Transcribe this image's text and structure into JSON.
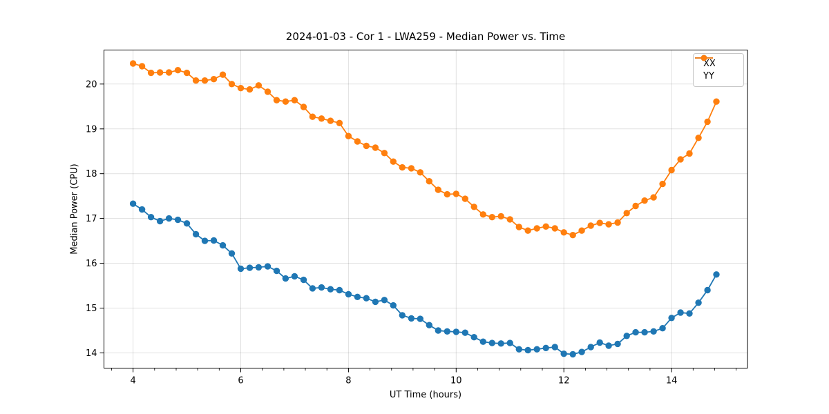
{
  "chart_data": {
    "type": "line",
    "title": "2024-01-03 - Cor 1 - LWA259 - Median Power vs. Time",
    "xlabel": "UT Time (hours)",
    "ylabel": "Median Power (CPU)",
    "xlim": [
      3.46,
      15.41
    ],
    "ylim": [
      13.66,
      20.76
    ],
    "x_ticks": [
      4,
      6,
      8,
      10,
      12,
      14
    ],
    "x_minor_step": 0.4,
    "y_ticks": [
      14,
      15,
      16,
      17,
      18,
      19,
      20
    ],
    "grid": true,
    "legend_position": "upper right",
    "x": [
      4.0,
      4.167,
      4.333,
      4.5,
      4.667,
      4.833,
      5.0,
      5.167,
      5.333,
      5.5,
      5.667,
      5.833,
      6.0,
      6.167,
      6.333,
      6.5,
      6.667,
      6.833,
      7.0,
      7.167,
      7.333,
      7.5,
      7.667,
      7.833,
      8.0,
      8.167,
      8.333,
      8.5,
      8.667,
      8.833,
      9.0,
      9.167,
      9.333,
      9.5,
      9.667,
      9.833,
      10.0,
      10.167,
      10.333,
      10.5,
      10.667,
      10.833,
      11.0,
      11.167,
      11.333,
      11.5,
      11.667,
      11.833,
      12.0,
      12.167,
      12.333,
      12.5,
      12.667,
      12.833,
      13.0,
      13.167,
      13.333,
      13.5,
      13.667,
      13.833,
      14.0,
      14.167,
      14.333,
      14.5,
      14.667,
      14.833
    ],
    "series": [
      {
        "name": "XX",
        "color": "#1f77b4",
        "values": [
          17.33,
          17.2,
          17.03,
          16.94,
          17.0,
          16.97,
          16.89,
          16.65,
          16.5,
          16.51,
          16.4,
          16.22,
          15.88,
          15.9,
          15.91,
          15.93,
          15.83,
          15.66,
          15.71,
          15.63,
          15.44,
          15.46,
          15.42,
          15.4,
          15.31,
          15.25,
          15.22,
          15.14,
          15.18,
          15.06,
          14.84,
          14.77,
          14.76,
          14.62,
          14.5,
          14.48,
          14.47,
          14.45,
          14.35,
          14.25,
          14.22,
          14.21,
          14.22,
          14.08,
          14.06,
          14.08,
          14.11,
          14.13,
          13.98,
          13.97,
          14.02,
          14.13,
          14.23,
          14.16,
          14.2,
          14.38,
          14.46,
          14.46,
          14.48,
          14.55,
          14.78,
          14.9,
          14.88,
          15.12,
          15.4,
          15.75
        ]
      },
      {
        "name": "YY",
        "color": "#ff7f0e",
        "values": [
          20.46,
          20.4,
          20.25,
          20.26,
          20.26,
          20.31,
          20.25,
          20.08,
          20.08,
          20.11,
          20.21,
          20.0,
          19.91,
          19.88,
          19.97,
          19.83,
          19.64,
          19.61,
          19.64,
          19.49,
          19.27,
          19.23,
          19.18,
          19.13,
          18.84,
          18.72,
          18.62,
          18.58,
          18.46,
          18.27,
          18.14,
          18.12,
          18.03,
          17.83,
          17.64,
          17.54,
          17.55,
          17.44,
          17.26,
          17.09,
          17.03,
          17.05,
          16.98,
          16.81,
          16.73,
          16.78,
          16.82,
          16.78,
          16.69,
          16.63,
          16.73,
          16.84,
          16.9,
          16.87,
          16.91,
          17.12,
          17.28,
          17.4,
          17.47,
          17.77,
          18.08,
          18.32,
          18.45,
          18.8,
          19.16,
          19.61
        ]
      }
    ]
  }
}
